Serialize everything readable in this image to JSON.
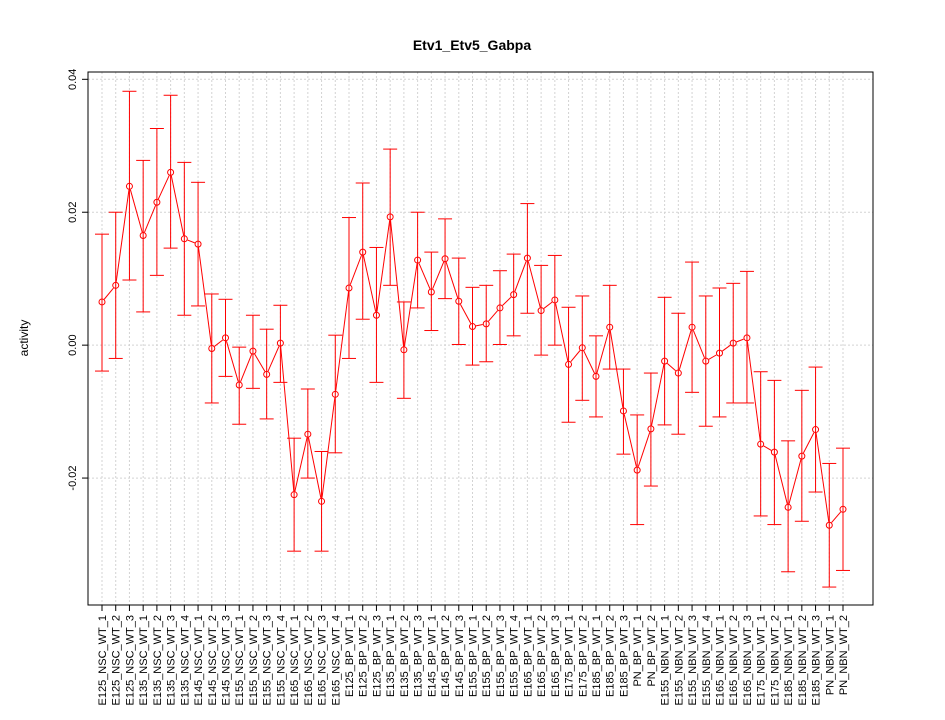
{
  "chart_data": {
    "type": "line",
    "title": "Etv1_Etv5_Gabpa",
    "xlabel": "",
    "ylabel": "activity",
    "ylim": [
      -0.0391,
      0.0411
    ],
    "yticks": [
      -0.02,
      0.0,
      0.02,
      0.04
    ],
    "ytick_labels": [
      "-0.02",
      "0.00",
      "0.02",
      "0.04"
    ],
    "grid": true,
    "color": "#ff0000",
    "errorbar_color": "#ff0000",
    "categories": [
      "E125_NSC_WT_1",
      "E125_NSC_WT_2",
      "E125_NSC_WT_3",
      "E135_NSC_WT_1",
      "E135_NSC_WT_2",
      "E135_NSC_WT_3",
      "E135_NSC_WT_4",
      "E145_NSC_WT_1",
      "E145_NSC_WT_2",
      "E145_NSC_WT_3",
      "E155_NSC_WT_1",
      "E155_NSC_WT_2",
      "E155_NSC_WT_3",
      "E155_NSC_WT_4",
      "E165_NSC_WT_1",
      "E165_NSC_WT_2",
      "E165_NSC_WT_3",
      "E165_NSC_WT_4",
      "E125_BP_WT_1",
      "E125_BP_WT_2",
      "E125_BP_WT_3",
      "E135_BP_WT_1",
      "E135_BP_WT_2",
      "E135_BP_WT_3",
      "E145_BP_WT_1",
      "E145_BP_WT_2",
      "E145_BP_WT_3",
      "E155_BP_WT_1",
      "E155_BP_WT_2",
      "E155_BP_WT_3",
      "E155_BP_WT_4",
      "E165_BP_WT_1",
      "E165_BP_WT_2",
      "E165_BP_WT_3",
      "E175_BP_WT_1",
      "E175_BP_WT_2",
      "E185_BP_WT_1",
      "E185_BP_WT_2",
      "E185_BP_WT_3",
      "PN_BP_WT_1",
      "PN_BP_WT_2",
      "E155_NBN_WT_1",
      "E155_NBN_WT_2",
      "E155_NBN_WT_3",
      "E155_NBN_WT_4",
      "E165_NBN_WT_1",
      "E165_NBN_WT_2",
      "E165_NBN_WT_3",
      "E175_NBN_WT_1",
      "E175_NBN_WT_2",
      "E185_NBN_WT_1",
      "E185_NBN_WT_2",
      "E185_NBN_WT_3",
      "PN_NBN_WT_1",
      "PN_NBN_WT_2"
    ],
    "values": [
      0.0065,
      0.009,
      0.0239,
      0.0165,
      0.0215,
      0.026,
      0.016,
      0.0152,
      -0.0005,
      0.0011,
      -0.006,
      -0.0009,
      -0.0044,
      0.0003,
      -0.0225,
      -0.0134,
      -0.0235,
      -0.0074,
      0.0086,
      0.014,
      0.0045,
      0.0193,
      -0.0007,
      0.0128,
      0.008,
      0.013,
      0.0066,
      0.0028,
      0.0032,
      0.0056,
      0.0076,
      0.0131,
      0.0052,
      0.0068,
      -0.0029,
      -0.0004,
      -0.0047,
      0.0027,
      -0.0099,
      -0.0188,
      -0.0126,
      -0.0024,
      -0.0042,
      0.0027,
      -0.0024,
      -0.0012,
      0.0003,
      0.0011,
      -0.0149,
      -0.0161,
      -0.0244,
      -0.0167,
      -0.0127,
      -0.0271,
      -0.0247
    ],
    "upper": [
      0.0167,
      0.02,
      0.0382,
      0.0278,
      0.0326,
      0.0376,
      0.0275,
      0.0245,
      0.0077,
      0.0069,
      -0.0003,
      0.0045,
      0.0024,
      0.006,
      -0.014,
      -0.0066,
      -0.016,
      0.0015,
      0.0192,
      0.0244,
      0.0147,
      0.0295,
      0.0065,
      0.02,
      0.014,
      0.019,
      0.0131,
      0.0087,
      0.009,
      0.0112,
      0.0137,
      0.0213,
      0.012,
      0.0135,
      0.0057,
      0.0074,
      0.0014,
      0.009,
      -0.0036,
      -0.0105,
      -0.0042,
      0.0072,
      0.0048,
      0.0125,
      0.0074,
      0.0086,
      0.0093,
      0.0111,
      -0.004,
      -0.0053,
      -0.0144,
      -0.0068,
      -0.0033,
      -0.0178,
      -0.0155
    ],
    "lower": [
      -0.0039,
      -0.002,
      0.0098,
      0.005,
      0.0105,
      0.0146,
      0.0045,
      0.0059,
      -0.0087,
      -0.0047,
      -0.0119,
      -0.0065,
      -0.0111,
      -0.0056,
      -0.031,
      -0.02,
      -0.031,
      -0.0162,
      -0.002,
      0.0039,
      -0.0056,
      0.009,
      -0.008,
      0.0056,
      0.0022,
      0.007,
      0.0001,
      -0.003,
      -0.0025,
      0.0001,
      0.0014,
      0.0048,
      -0.0015,
      0.0,
      -0.0116,
      -0.0083,
      -0.0108,
      -0.0036,
      -0.0164,
      -0.027,
      -0.0212,
      -0.012,
      -0.0134,
      -0.0071,
      -0.0122,
      -0.0108,
      -0.0087,
      -0.0087,
      -0.0257,
      -0.027,
      -0.0341,
      -0.0265,
      -0.0221,
      -0.0364,
      -0.0339
    ]
  }
}
